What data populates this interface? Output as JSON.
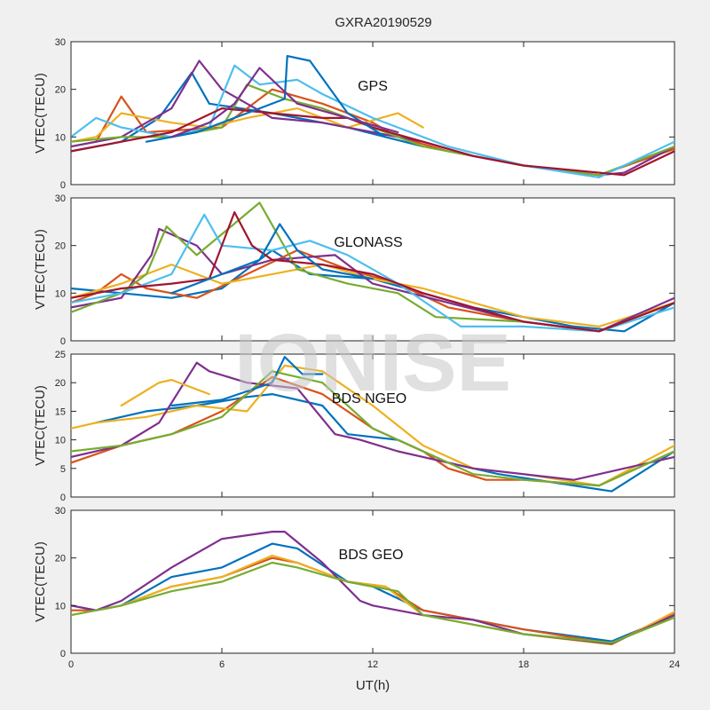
{
  "figure": {
    "title": "GXRA20190529",
    "xlabel": "UT(h)",
    "watermark": "IONISE"
  },
  "colors": [
    "#0072bd",
    "#d95319",
    "#edb120",
    "#7e2f8e",
    "#77ac30",
    "#4dbeee",
    "#a2142f"
  ],
  "chart_data": [
    {
      "type": "line",
      "panel_label": "GPS",
      "ylabel": "VTEC(TECU)",
      "xlim": [
        0,
        24
      ],
      "ylim": [
        0,
        30
      ],
      "xticks": [
        0,
        6,
        12,
        18,
        24
      ],
      "yticks": [
        0,
        10,
        20,
        30
      ],
      "series": [
        {
          "color": "#0072bd",
          "x": [
            0,
            2,
            3.5,
            4.8,
            5.5,
            8,
            11,
            12.5,
            14
          ],
          "y": [
            7,
            9,
            14,
            23.5,
            17,
            15,
            12,
            10,
            8
          ]
        },
        {
          "color": "#d95319",
          "x": [
            0,
            1,
            2,
            3,
            6,
            8,
            10,
            12,
            13,
            15,
            18,
            21,
            24
          ],
          "y": [
            8,
            9,
            18.5,
            11,
            12,
            20,
            17,
            13,
            10,
            7,
            4,
            2,
            7.5
          ]
        },
        {
          "color": "#edb120",
          "x": [
            0,
            1,
            2,
            4,
            5.5,
            7,
            9,
            11,
            13,
            14
          ],
          "y": [
            9,
            10,
            15,
            13,
            12,
            14,
            16,
            12,
            15,
            12
          ]
        },
        {
          "color": "#7e2f8e",
          "x": [
            0,
            2,
            4,
            5.1,
            6,
            8,
            10,
            12,
            14,
            16,
            18,
            21,
            22,
            24
          ],
          "y": [
            8,
            10,
            16,
            26,
            20,
            14,
            13,
            11,
            9,
            6,
            4,
            2,
            2.5,
            8
          ]
        },
        {
          "color": "#77ac30",
          "x": [
            0,
            2,
            4,
            6,
            7,
            8.5,
            10,
            12,
            14,
            16,
            18,
            21,
            24
          ],
          "y": [
            9,
            10,
            10,
            12,
            21,
            18,
            16,
            12,
            8,
            6,
            4,
            2,
            8
          ]
        },
        {
          "color": "#4dbeee",
          "x": [
            0,
            1,
            2,
            4,
            5.5,
            6.5,
            7.5,
            9,
            10,
            12,
            15,
            18,
            21,
            24
          ],
          "y": [
            10,
            14,
            12,
            10,
            12,
            25,
            21,
            22,
            19,
            14,
            8,
            4,
            1.5,
            9
          ]
        },
        {
          "color": "#a2142f",
          "x": [
            0,
            2,
            4,
            6,
            8,
            10,
            11,
            12,
            14,
            16,
            18,
            20,
            22,
            24
          ],
          "y": [
            7,
            9,
            11,
            16,
            15,
            14,
            14,
            12,
            9,
            6,
            4,
            3,
            2,
            7
          ]
        },
        {
          "color": "#0072bd",
          "x": [
            3,
            5,
            7,
            8.5,
            8.6,
            9.5,
            11,
            12.5
          ],
          "y": [
            9,
            11,
            15,
            18,
            27,
            26,
            15,
            10
          ]
        },
        {
          "color": "#7e2f8e",
          "x": [
            4,
            5.5,
            6.5,
            7.5,
            9,
            11,
            13
          ],
          "y": [
            10,
            13,
            17,
            24.5,
            17,
            14,
            11
          ]
        }
      ]
    },
    {
      "type": "line",
      "panel_label": "GLONASS",
      "ylabel": "VTEC(TECU)",
      "xlim": [
        0,
        24
      ],
      "ylim": [
        0,
        30
      ],
      "xticks": [
        0,
        6,
        12,
        18,
        24
      ],
      "yticks": [
        0,
        10,
        20,
        30
      ],
      "series": [
        {
          "color": "#0072bd",
          "x": [
            0,
            2,
            4,
            6,
            8,
            9.5,
            12,
            14,
            16,
            18,
            20,
            22,
            24
          ],
          "y": [
            11,
            10,
            9,
            11,
            19,
            14,
            13,
            10,
            7,
            5,
            3,
            2,
            8
          ]
        },
        {
          "color": "#d95319",
          "x": [
            0,
            1,
            2,
            3,
            5,
            7,
            9,
            11,
            13,
            15,
            18,
            21,
            24
          ],
          "y": [
            8,
            10,
            14,
            11,
            9,
            14,
            19,
            15,
            12,
            7,
            4,
            2,
            8
          ]
        },
        {
          "color": "#edb120",
          "x": [
            0,
            2,
            4,
            6,
            8,
            10,
            12,
            14,
            16,
            18,
            21,
            24
          ],
          "y": [
            9,
            12,
            16,
            12,
            14,
            16,
            13,
            11,
            8,
            5,
            3,
            8
          ]
        },
        {
          "color": "#7e2f8e",
          "x": [
            0,
            2,
            3.2,
            3.5,
            5,
            6,
            8,
            10.5,
            12,
            15,
            18,
            21,
            24
          ],
          "y": [
            7,
            9,
            18,
            23.5,
            20,
            14,
            17,
            18,
            12,
            8,
            4,
            2,
            9
          ]
        },
        {
          "color": "#77ac30",
          "x": [
            0,
            1,
            2,
            3,
            3.8,
            5,
            7.5,
            9,
            11,
            13,
            14.5,
            18,
            21,
            24
          ],
          "y": [
            6,
            8,
            10,
            14,
            24,
            18,
            29,
            15,
            12,
            10,
            5,
            4,
            2,
            8
          ]
        },
        {
          "color": "#4dbeee",
          "x": [
            0,
            2,
            4,
            5.3,
            6,
            8,
            9.5,
            11,
            13,
            15.5,
            18,
            21,
            24
          ],
          "y": [
            8,
            10,
            14,
            26.5,
            20,
            19,
            21,
            18,
            12,
            3,
            3,
            2,
            7
          ]
        },
        {
          "color": "#a2142f",
          "x": [
            0,
            2,
            4,
            5.5,
            6.5,
            7.2,
            8,
            10,
            12,
            14,
            16,
            18,
            21,
            24
          ],
          "y": [
            9,
            11,
            12,
            13,
            27,
            20,
            17,
            16,
            14,
            10,
            7,
            4,
            2,
            8
          ]
        },
        {
          "color": "#0072bd",
          "x": [
            4,
            6,
            7.5,
            8.3,
            9,
            10,
            12
          ],
          "y": [
            10,
            14,
            17,
            24.5,
            19,
            15,
            13
          ]
        }
      ]
    },
    {
      "type": "line",
      "panel_label": "BDS NGEO",
      "ylabel": "VTEC(TECU)",
      "xlim": [
        0,
        24
      ],
      "ylim": [
        0,
        25
      ],
      "xticks": [
        0,
        6,
        12,
        18,
        24
      ],
      "yticks": [
        0,
        5,
        10,
        15,
        20,
        25
      ],
      "series": [
        {
          "color": "#0072bd",
          "x": [
            1,
            3,
            5,
            7,
            8,
            10,
            11,
            13,
            15,
            17,
            20,
            21.5,
            24
          ],
          "y": [
            13,
            15,
            16,
            17.5,
            18,
            16,
            11,
            10,
            6,
            4,
            2,
            1,
            8
          ]
        },
        {
          "color": "#d95319",
          "x": [
            0,
            2,
            4,
            6,
            8,
            10,
            12,
            14,
            15,
            16.5,
            18,
            21,
            24
          ],
          "y": [
            6,
            9,
            11,
            15,
            21,
            18,
            12,
            8,
            5,
            3,
            3,
            2,
            8
          ]
        },
        {
          "color": "#edb120",
          "x": [
            0,
            1,
            3,
            5,
            7,
            8.5,
            10,
            12,
            14,
            16,
            18,
            21,
            24
          ],
          "y": [
            12,
            13,
            14,
            16,
            15,
            23,
            22,
            16,
            9,
            5,
            4,
            2,
            9
          ]
        },
        {
          "color": "#7e2f8e",
          "x": [
            0,
            2,
            3.5,
            5,
            5.5,
            7,
            9,
            10.5,
            11.5,
            13,
            16,
            20,
            24
          ],
          "y": [
            7,
            9,
            13,
            23.5,
            22,
            20,
            19,
            11,
            10,
            8,
            5,
            3,
            7
          ]
        },
        {
          "color": "#77ac30",
          "x": [
            0,
            2,
            4,
            6,
            8,
            10,
            12,
            14,
            16,
            18,
            21,
            24
          ],
          "y": [
            8,
            9,
            11,
            14,
            22,
            20,
            12,
            8,
            4,
            3,
            2,
            8
          ]
        },
        {
          "color": "#0072bd",
          "x": [
            4,
            6,
            8,
            8.5,
            9.2,
            10
          ],
          "y": [
            16,
            17,
            20,
            24.5,
            21.5,
            21.5
          ]
        },
        {
          "color": "#edb120",
          "x": [
            2,
            3.5,
            4,
            5.5
          ],
          "y": [
            16,
            20,
            20.5,
            18
          ]
        }
      ]
    },
    {
      "type": "line",
      "panel_label": "BDS GEO",
      "ylabel": "VTEC(TECU)",
      "xlim": [
        0,
        24
      ],
      "ylim": [
        0,
        30
      ],
      "xticks": [
        0,
        6,
        12,
        18,
        24
      ],
      "yticks": [
        0,
        10,
        20,
        30
      ],
      "series": [
        {
          "color": "#0072bd",
          "x": [
            0,
            1,
            2,
            4,
            6,
            8,
            9,
            11,
            12,
            14,
            16,
            18,
            21.5,
            24
          ],
          "y": [
            10,
            9,
            10,
            16,
            18,
            23,
            22,
            15,
            14,
            9,
            7,
            5,
            2.5,
            8
          ]
        },
        {
          "color": "#d95319",
          "x": [
            0,
            1,
            2,
            4,
            6,
            8,
            9,
            11,
            12.5,
            14,
            16,
            18,
            21.5,
            24
          ],
          "y": [
            9,
            9,
            10,
            14,
            16,
            20,
            19,
            15,
            14,
            9,
            7,
            5,
            2,
            8.5
          ]
        },
        {
          "color": "#edb120",
          "x": [
            0,
            1,
            2,
            4,
            6,
            8,
            9,
            11,
            12.5,
            14,
            16,
            18,
            21.5,
            24
          ],
          "y": [
            8,
            9,
            10,
            14,
            16,
            20.5,
            19,
            15,
            14,
            8,
            6,
            4,
            1.8,
            8.7
          ]
        },
        {
          "color": "#7e2f8e",
          "x": [
            0,
            1,
            2,
            4,
            6,
            8,
            8.5,
            10,
            11.5,
            12,
            14,
            16,
            18,
            21.5,
            24
          ],
          "y": [
            10,
            9,
            11,
            18,
            24,
            25.5,
            25.5,
            19,
            11,
            10,
            8,
            7,
            4,
            2,
            8
          ]
        },
        {
          "color": "#77ac30",
          "x": [
            0,
            1,
            2,
            4,
            6,
            8,
            9,
            11,
            13,
            14,
            16,
            18,
            21.5,
            24
          ],
          "y": [
            8,
            9,
            10,
            13,
            15,
            19,
            18,
            15,
            13,
            8,
            6,
            4,
            2.2,
            7.5
          ]
        }
      ]
    }
  ]
}
